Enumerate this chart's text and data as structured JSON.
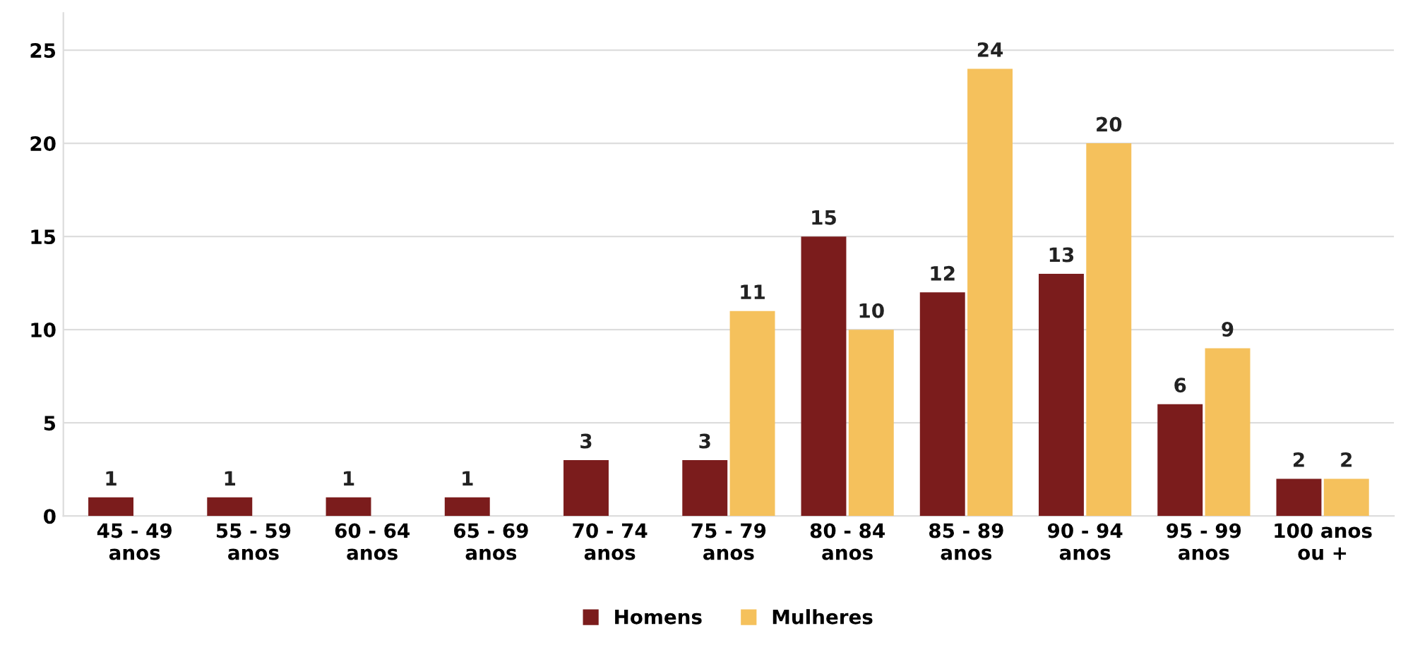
{
  "chart_data": {
    "type": "bar",
    "categories": [
      "45 - 49\nanos",
      "55 - 59\nanos",
      "60 - 64\nanos",
      "65 - 69\nanos",
      "70 - 74\nanos",
      "75 - 79\nanos",
      "80 - 84\nanos",
      "85 - 89\nanos",
      "90 - 94\nanos",
      "95 - 99\nanos",
      "100 anos\nou +"
    ],
    "series": [
      {
        "name": "Homens",
        "color": "#7b1c1c",
        "values": [
          1,
          1,
          1,
          1,
          3,
          3,
          15,
          12,
          13,
          6,
          2
        ]
      },
      {
        "name": "Mulheres",
        "color": "#f5c15c",
        "values": [
          null,
          null,
          null,
          null,
          null,
          11,
          10,
          24,
          20,
          9,
          2
        ]
      }
    ],
    "ylim": [
      0,
      27
    ],
    "yticks": [
      0,
      5,
      10,
      15,
      20,
      25
    ],
    "grid": "y",
    "legend": "bottom",
    "data_labels": true
  }
}
